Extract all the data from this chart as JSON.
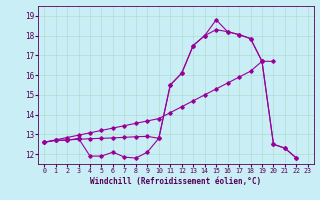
{
  "xlabel": "Windchill (Refroidissement éolien,°C)",
  "background_color": "#caeef5",
  "grid_color": "#b0ddd0",
  "line_color": "#990099",
  "xlim": [
    -0.5,
    23.5
  ],
  "ylim": [
    11.5,
    19.5
  ],
  "xticks": [
    0,
    1,
    2,
    3,
    4,
    5,
    6,
    7,
    8,
    9,
    10,
    11,
    12,
    13,
    14,
    15,
    16,
    17,
    18,
    19,
    20,
    21,
    22,
    23
  ],
  "yticks": [
    12,
    13,
    14,
    15,
    16,
    17,
    18,
    19
  ],
  "line1_x": [
    0,
    1,
    2,
    3,
    4,
    5,
    6,
    7,
    8,
    9,
    10,
    11,
    12,
    13,
    14,
    15,
    16,
    17,
    18,
    19,
    20,
    21,
    22
  ],
  "line1_y": [
    12.6,
    12.7,
    12.7,
    12.8,
    11.9,
    11.9,
    12.1,
    11.85,
    11.8,
    12.1,
    12.8,
    15.5,
    16.1,
    17.5,
    18.0,
    18.3,
    18.2,
    18.05,
    17.85,
    16.7,
    12.5,
    12.3,
    11.8
  ],
  "line2_x": [
    0,
    1,
    2,
    3,
    4,
    5,
    6,
    7,
    8,
    9,
    10,
    11,
    12,
    13,
    14,
    15,
    16,
    17,
    18,
    19,
    20
  ],
  "line2_y": [
    12.6,
    12.72,
    12.84,
    12.96,
    13.08,
    13.2,
    13.32,
    13.44,
    13.56,
    13.68,
    13.8,
    14.1,
    14.4,
    14.7,
    15.0,
    15.3,
    15.6,
    15.9,
    16.2,
    16.7,
    16.7
  ],
  "line3_x": [
    0,
    1,
    2,
    3,
    4,
    5,
    6,
    7,
    8,
    9,
    10,
    11,
    12,
    13,
    14,
    15,
    16,
    17,
    18,
    19,
    20,
    21,
    22
  ],
  "line3_y": [
    12.6,
    12.7,
    12.72,
    12.75,
    12.78,
    12.8,
    12.82,
    12.85,
    12.88,
    12.9,
    12.8,
    15.5,
    16.1,
    17.5,
    18.0,
    18.8,
    18.2,
    18.05,
    17.85,
    16.7,
    12.5,
    12.3,
    11.8
  ]
}
